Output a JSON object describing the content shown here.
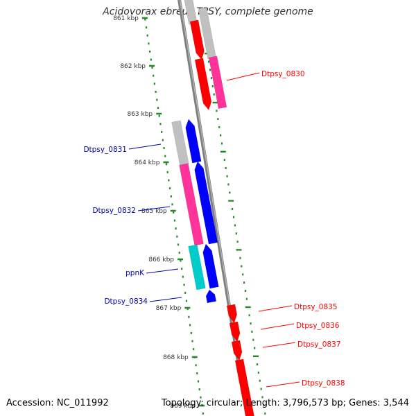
{
  "title": "Acidovorax ebreus TPSY, complete genome",
  "footer": {
    "accession": "Accession: NC_011992",
    "summary": "Topology: circular; Length: 3,796,573 bp; Genes: 3,544"
  },
  "colors": {
    "backbone": "#7f7f7f",
    "ruler_ticks": "#2a8a2a",
    "cds": "#ff0000",
    "cds_reverse": "#0000ff",
    "rna_feature": "#ff3399",
    "misc_feature": "#c0c0c0",
    "repeat": "#00cccc",
    "forward_label": "#ff0000",
    "reverse_label": "#0000aa"
  },
  "ruler_labels": [
    "861 kbp",
    "862 kbp",
    "863 kbp",
    "864 kbp",
    "865 kbp",
    "866 kbp",
    "867 kbp",
    "868 kbp",
    "869 kbp"
  ],
  "gene_labels": {
    "forward": [
      "Dtpsy_0830",
      "Dtpsy_0835",
      "Dtpsy_0836",
      "Dtpsy_0837",
      "Dtpsy_0838"
    ],
    "reverse": [
      "Dtpsy_0831",
      "Dtpsy_0832",
      "ppnK",
      "Dtpsy_0834"
    ]
  }
}
